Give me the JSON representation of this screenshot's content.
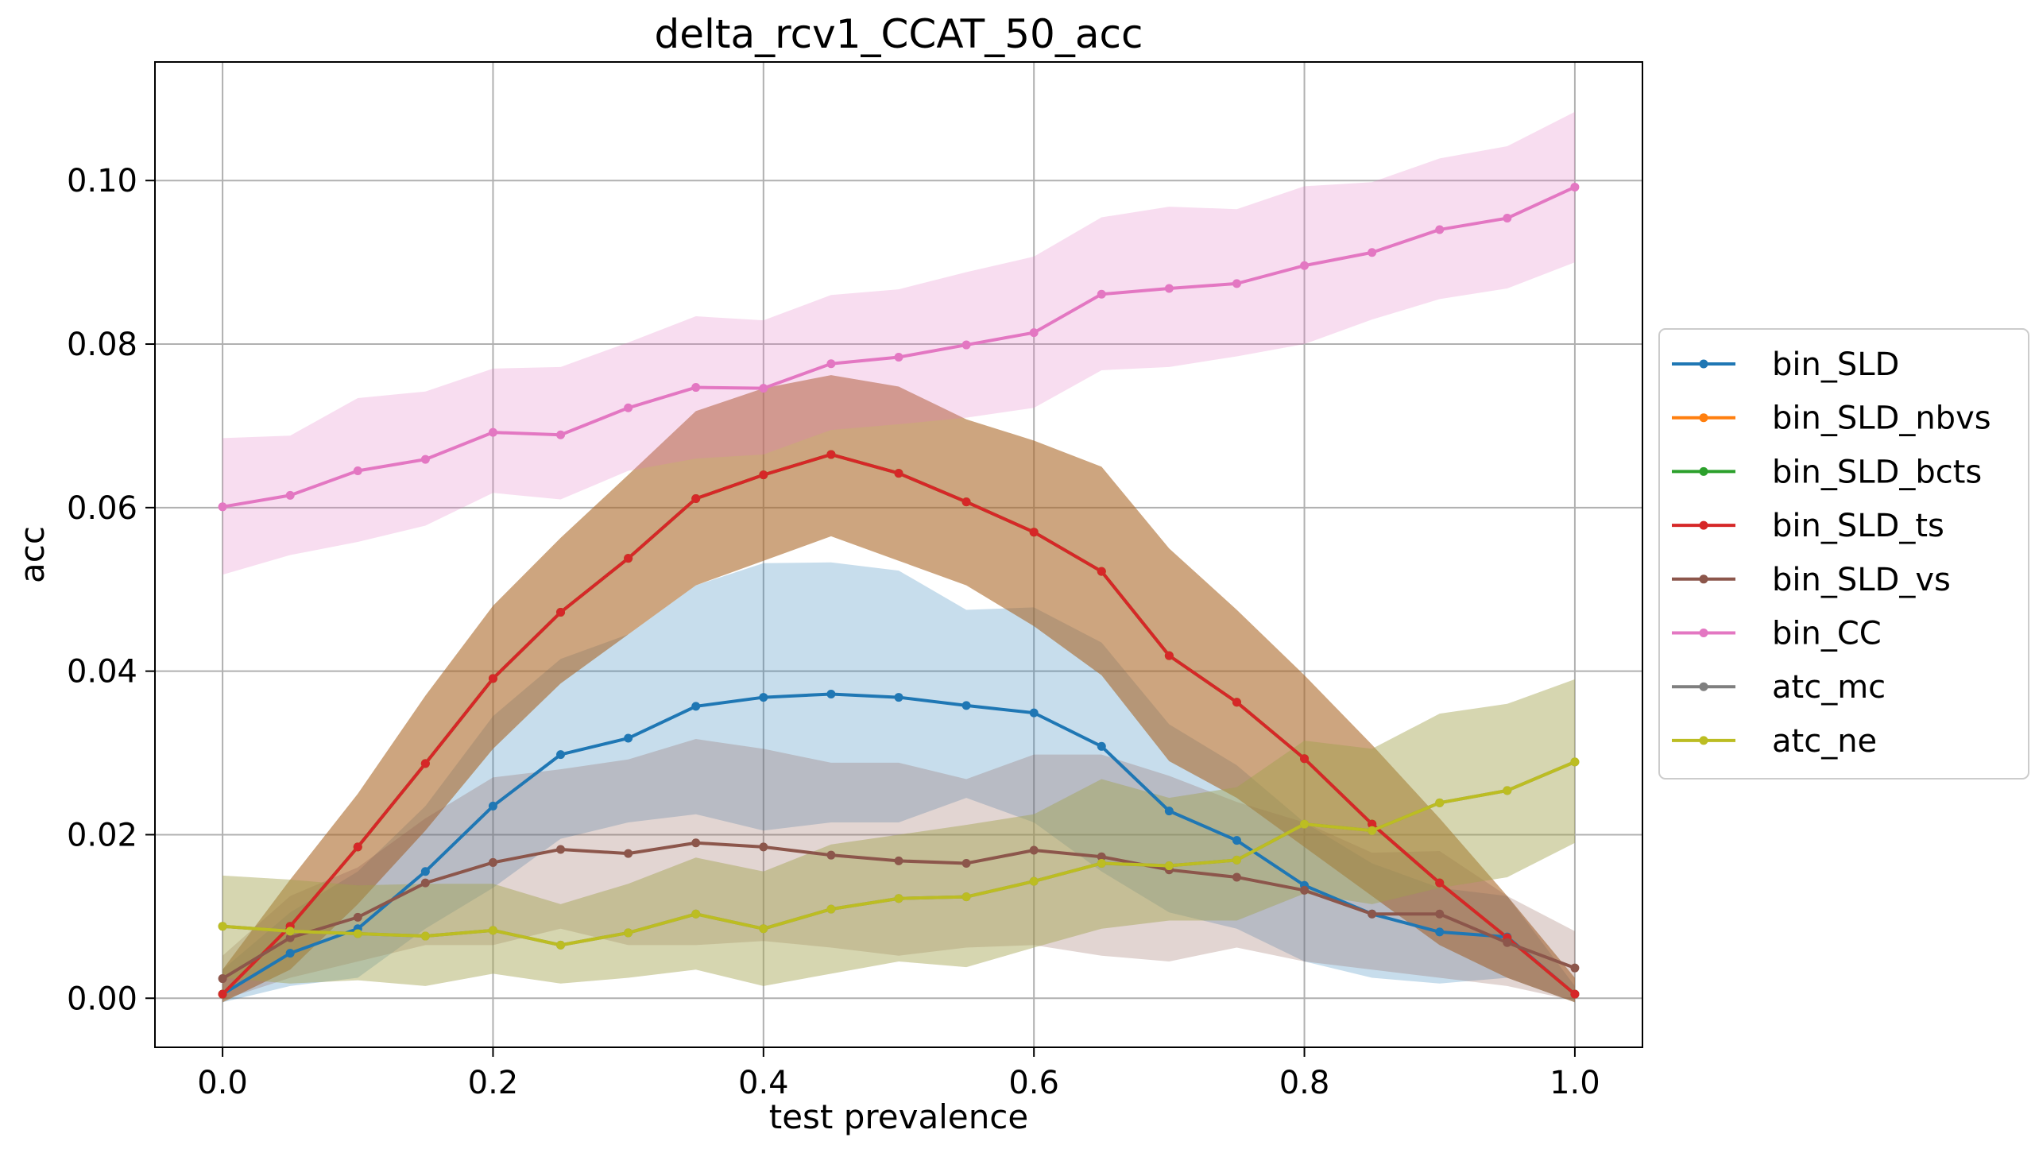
{
  "chart_data": {
    "type": "line",
    "title": "delta_rcv1_CCAT_50_acc",
    "xlabel": "test prevalence",
    "ylabel": "acc",
    "xlim": [
      -0.05,
      1.05
    ],
    "ylim": [
      -0.006,
      0.1145
    ],
    "xticks": [
      0.0,
      0.2,
      0.4,
      0.6,
      0.8,
      1.0
    ],
    "xtick_labels": [
      "0.0",
      "0.2",
      "0.4",
      "0.6",
      "0.8",
      "1.0"
    ],
    "yticks": [
      0.0,
      0.02,
      0.04,
      0.06,
      0.08,
      0.1
    ],
    "ytick_labels": [
      "0.00",
      "0.02",
      "0.04",
      "0.06",
      "0.08",
      "0.10"
    ],
    "grid": true,
    "legend_position": "outside-right",
    "x": [
      0.0,
      0.05,
      0.1,
      0.15,
      0.2,
      0.25,
      0.3,
      0.35,
      0.4,
      0.45,
      0.5,
      0.55,
      0.6,
      0.65,
      0.7,
      0.75,
      0.8,
      0.85,
      0.9,
      0.95,
      1.0
    ],
    "series": [
      {
        "name": "bin_SLD",
        "color": "#1f77b4",
        "values": [
          0.0005,
          0.0055,
          0.0085,
          0.0155,
          0.0235,
          0.0298,
          0.0318,
          0.0357,
          0.0368,
          0.0372,
          0.0368,
          0.0358,
          0.0349,
          0.0308,
          0.0229,
          0.0193,
          0.0138,
          0.0103,
          0.0081,
          0.0075,
          0.0005
        ],
        "lower": [
          -0.0005,
          0.0015,
          0.0025,
          0.0085,
          0.0135,
          0.0195,
          0.0215,
          0.0225,
          0.0205,
          0.0215,
          0.0215,
          0.0245,
          0.0215,
          0.0155,
          0.0105,
          0.0085,
          0.0045,
          0.0025,
          0.0018,
          0.0025,
          -0.0005
        ],
        "upper": [
          0.0035,
          0.0105,
          0.0155,
          0.0235,
          0.0345,
          0.0415,
          0.0445,
          0.0505,
          0.0532,
          0.0533,
          0.0523,
          0.0475,
          0.0478,
          0.0435,
          0.0335,
          0.0285,
          0.0215,
          0.0165,
          0.0135,
          0.0125,
          0.0015
        ]
      },
      {
        "name": "bin_SLD_nbvs",
        "color": "#ff7f0e",
        "values": [
          0.0005,
          0.0088,
          0.0185,
          0.0287,
          0.0391,
          0.0472,
          0.0538,
          0.0611,
          0.064,
          0.0665,
          0.0642,
          0.0607,
          0.057,
          0.0522,
          0.0419,
          0.0362,
          0.0293,
          0.0213,
          0.0141,
          0.0074,
          0.0005
        ],
        "lower": [
          -0.0005,
          0.0035,
          0.0115,
          0.0205,
          0.0305,
          0.0385,
          0.0445,
          0.0505,
          0.0535,
          0.0565,
          0.0535,
          0.0505,
          0.0455,
          0.0395,
          0.029,
          0.0245,
          0.0185,
          0.0125,
          0.0065,
          0.0025,
          -0.0005
        ],
        "upper": [
          0.0035,
          0.0145,
          0.025,
          0.037,
          0.048,
          0.0563,
          0.064,
          0.0718,
          0.0746,
          0.0762,
          0.0748,
          0.0708,
          0.0682,
          0.065,
          0.055,
          0.0475,
          0.0395,
          0.031,
          0.022,
          0.0125,
          0.0025
        ]
      },
      {
        "name": "bin_SLD_bcts",
        "color": "#2ca02c",
        "values": [
          0.0005,
          0.0088,
          0.0185,
          0.0287,
          0.0391,
          0.0472,
          0.0538,
          0.0611,
          0.064,
          0.0665,
          0.0642,
          0.0607,
          0.057,
          0.0522,
          0.0419,
          0.0362,
          0.0293,
          0.0213,
          0.0141,
          0.0074,
          0.0005
        ],
        "lower": [
          -0.0005,
          0.0035,
          0.0115,
          0.0205,
          0.0305,
          0.0385,
          0.0445,
          0.0505,
          0.0535,
          0.0565,
          0.0535,
          0.0505,
          0.0455,
          0.0395,
          0.029,
          0.0245,
          0.0185,
          0.0125,
          0.0065,
          0.0025,
          -0.0005
        ],
        "upper": [
          0.0035,
          0.0145,
          0.025,
          0.037,
          0.048,
          0.0563,
          0.064,
          0.0718,
          0.0746,
          0.0762,
          0.0748,
          0.0708,
          0.0682,
          0.065,
          0.055,
          0.0475,
          0.0395,
          0.031,
          0.022,
          0.0125,
          0.0025
        ]
      },
      {
        "name": "bin_SLD_ts",
        "color": "#d62728",
        "values": [
          0.0005,
          0.0088,
          0.0185,
          0.0287,
          0.0391,
          0.0472,
          0.0538,
          0.0611,
          0.064,
          0.0665,
          0.0642,
          0.0607,
          0.057,
          0.0522,
          0.0419,
          0.0362,
          0.0293,
          0.0213,
          0.0141,
          0.0074,
          0.0005
        ],
        "lower": [
          -0.0005,
          0.0035,
          0.0115,
          0.0205,
          0.0305,
          0.0385,
          0.0445,
          0.0505,
          0.0535,
          0.0565,
          0.0535,
          0.0505,
          0.0455,
          0.0395,
          0.029,
          0.0245,
          0.0185,
          0.0125,
          0.0065,
          0.0025,
          -0.0005
        ],
        "upper": [
          0.0035,
          0.0145,
          0.025,
          0.037,
          0.048,
          0.0563,
          0.064,
          0.0718,
          0.0746,
          0.0762,
          0.0748,
          0.0708,
          0.0682,
          0.065,
          0.055,
          0.0475,
          0.0395,
          0.031,
          0.022,
          0.0125,
          0.0025
        ]
      },
      {
        "name": "bin_SLD_vs",
        "color": "#8c564b",
        "values": [
          0.0024,
          0.0074,
          0.0099,
          0.0141,
          0.0166,
          0.0182,
          0.0177,
          0.019,
          0.0185,
          0.0175,
          0.0168,
          0.0165,
          0.0181,
          0.0173,
          0.0157,
          0.0148,
          0.0132,
          0.0103,
          0.0103,
          0.0068,
          0.0037
        ],
        "lower": [
          -0.0002,
          0.0025,
          0.0045,
          0.0065,
          0.0065,
          0.0085,
          0.0065,
          0.0065,
          0.007,
          0.0062,
          0.0052,
          0.0062,
          0.0065,
          0.0052,
          0.0045,
          0.0062,
          0.0045,
          0.0035,
          0.0025,
          0.0015,
          -0.0003
        ],
        "upper": [
          0.0052,
          0.0125,
          0.016,
          0.022,
          0.027,
          0.028,
          0.0292,
          0.0317,
          0.0305,
          0.0288,
          0.0288,
          0.0268,
          0.0298,
          0.0298,
          0.0272,
          0.024,
          0.0215,
          0.0178,
          0.018,
          0.0125,
          0.0082
        ]
      },
      {
        "name": "bin_CC",
        "color": "#e377c2",
        "values": [
          0.0601,
          0.0615,
          0.0645,
          0.0659,
          0.0692,
          0.0689,
          0.0722,
          0.0747,
          0.0746,
          0.0776,
          0.0784,
          0.0799,
          0.0814,
          0.0861,
          0.0868,
          0.0874,
          0.0896,
          0.0912,
          0.094,
          0.0954,
          0.0992
        ],
        "lower": [
          0.0518,
          0.0542,
          0.0558,
          0.0578,
          0.0618,
          0.061,
          0.0645,
          0.066,
          0.0665,
          0.0695,
          0.0702,
          0.071,
          0.0722,
          0.0768,
          0.0772,
          0.0785,
          0.08,
          0.083,
          0.0855,
          0.0868,
          0.09
        ],
        "upper": [
          0.0685,
          0.0688,
          0.0734,
          0.0742,
          0.077,
          0.0772,
          0.0802,
          0.0834,
          0.0829,
          0.086,
          0.0867,
          0.0888,
          0.0907,
          0.0955,
          0.0968,
          0.0965,
          0.0993,
          0.0998,
          0.1027,
          0.1042,
          0.1084
        ]
      },
      {
        "name": "atc_mc",
        "color": "#7f7f7f",
        "values": [
          0.0088,
          0.0082,
          0.0079,
          0.0076,
          0.0083,
          0.0065,
          0.008,
          0.0103,
          0.0085,
          0.0109,
          0.0122,
          0.0124,
          0.0143,
          0.0165,
          0.0162,
          0.0169,
          0.0213,
          0.0205,
          0.0239,
          0.0254,
          0.0289
        ],
        "lower": [
          0.0025,
          0.0018,
          0.0022,
          0.0015,
          0.003,
          0.0018,
          0.0025,
          0.0035,
          0.0015,
          0.003,
          0.0045,
          0.0038,
          0.0062,
          0.0085,
          0.0095,
          0.0095,
          0.0128,
          0.0115,
          0.0135,
          0.0148,
          0.019
        ],
        "upper": [
          0.015,
          0.0145,
          0.0138,
          0.014,
          0.014,
          0.0115,
          0.014,
          0.0172,
          0.0155,
          0.0188,
          0.02,
          0.0212,
          0.0225,
          0.0268,
          0.0245,
          0.0258,
          0.0315,
          0.0305,
          0.0348,
          0.036,
          0.039
        ]
      },
      {
        "name": "atc_ne",
        "color": "#bcbd22",
        "values": [
          0.0088,
          0.0082,
          0.0079,
          0.0076,
          0.0083,
          0.0065,
          0.008,
          0.0103,
          0.0085,
          0.0109,
          0.0122,
          0.0124,
          0.0143,
          0.0165,
          0.0162,
          0.0169,
          0.0213,
          0.0205,
          0.0239,
          0.0254,
          0.0289
        ],
        "lower": [
          0.0025,
          0.0018,
          0.0022,
          0.0015,
          0.003,
          0.0018,
          0.0025,
          0.0035,
          0.0015,
          0.003,
          0.0045,
          0.0038,
          0.0062,
          0.0085,
          0.0095,
          0.0095,
          0.0128,
          0.0115,
          0.0135,
          0.0148,
          0.019
        ],
        "upper": [
          0.015,
          0.0145,
          0.0138,
          0.014,
          0.014,
          0.0115,
          0.014,
          0.0172,
          0.0155,
          0.0188,
          0.02,
          0.0212,
          0.0225,
          0.0268,
          0.0245,
          0.0258,
          0.0315,
          0.0305,
          0.0348,
          0.036,
          0.039
        ]
      }
    ]
  }
}
